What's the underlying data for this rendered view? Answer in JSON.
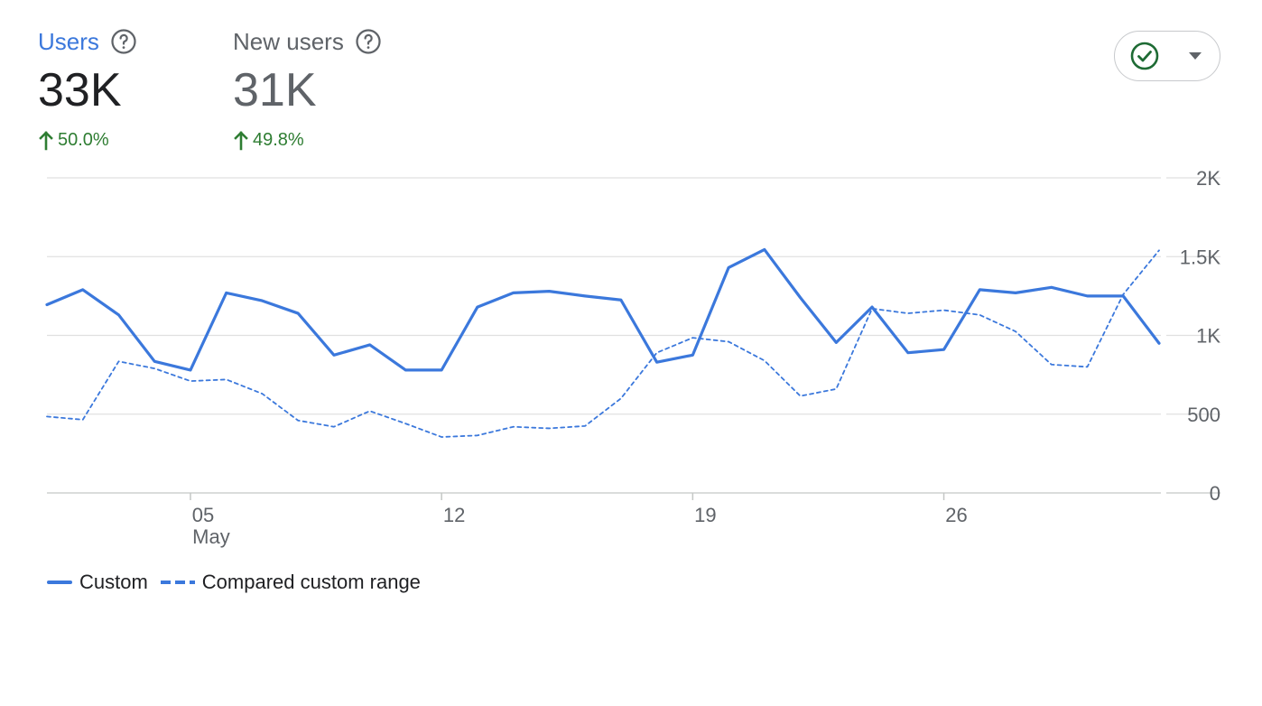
{
  "metrics": {
    "users": {
      "label": "Users",
      "value": "33K",
      "change": "50.0%"
    },
    "new_users": {
      "label": "New users",
      "value": "31K",
      "change": "49.8%"
    }
  },
  "compare_button": {
    "icon": "check-circle-icon",
    "dropdown_icon": "caret-down-icon"
  },
  "colors": {
    "accent": "#3b78dc",
    "positive": "#2e7d32",
    "muted": "#5f6368",
    "grid": "#e0e0e0"
  },
  "chart_data": {
    "type": "line",
    "x": [
      1,
      2,
      3,
      4,
      5,
      6,
      7,
      8,
      9,
      10,
      11,
      12,
      13,
      14,
      15,
      16,
      17,
      18,
      19,
      20,
      21,
      22,
      23,
      24,
      25,
      26,
      27,
      28,
      29,
      30,
      31,
      32
    ],
    "x_ticks": [
      {
        "x": 5,
        "label": "05",
        "sublabel": "May"
      },
      {
        "x": 12,
        "label": "12",
        "sublabel": ""
      },
      {
        "x": 19,
        "label": "19",
        "sublabel": ""
      },
      {
        "x": 26,
        "label": "26",
        "sublabel": ""
      }
    ],
    "y_ticks": [
      {
        "value": 0,
        "label": "0"
      },
      {
        "value": 500,
        "label": "500"
      },
      {
        "value": 1000,
        "label": "1K"
      },
      {
        "value": 1500,
        "label": "1.5K"
      },
      {
        "value": 2000,
        "label": "2K"
      }
    ],
    "ylim": [
      0,
      2000
    ],
    "grid": true,
    "legend_position": "bottom-left",
    "series": [
      {
        "name": "Custom",
        "style": "solid",
        "values": [
          1195,
          1290,
          1130,
          835,
          780,
          1270,
          1220,
          1140,
          875,
          940,
          780,
          780,
          1180,
          1270,
          1280,
          1250,
          1225,
          830,
          875,
          1430,
          1545,
          1240,
          955,
          1180,
          890,
          910,
          1290,
          1270,
          1305,
          1250,
          1250,
          950
        ]
      },
      {
        "name": "Compared custom range",
        "style": "dashed",
        "values": [
          485,
          465,
          835,
          790,
          710,
          720,
          630,
          460,
          420,
          520,
          440,
          355,
          365,
          420,
          410,
          425,
          600,
          890,
          985,
          960,
          840,
          615,
          660,
          1170,
          1140,
          1160,
          1130,
          1025,
          815,
          800,
          1260,
          1540
        ]
      }
    ]
  },
  "legend": {
    "custom_label": "Custom",
    "compared_label": "Compared custom range"
  }
}
